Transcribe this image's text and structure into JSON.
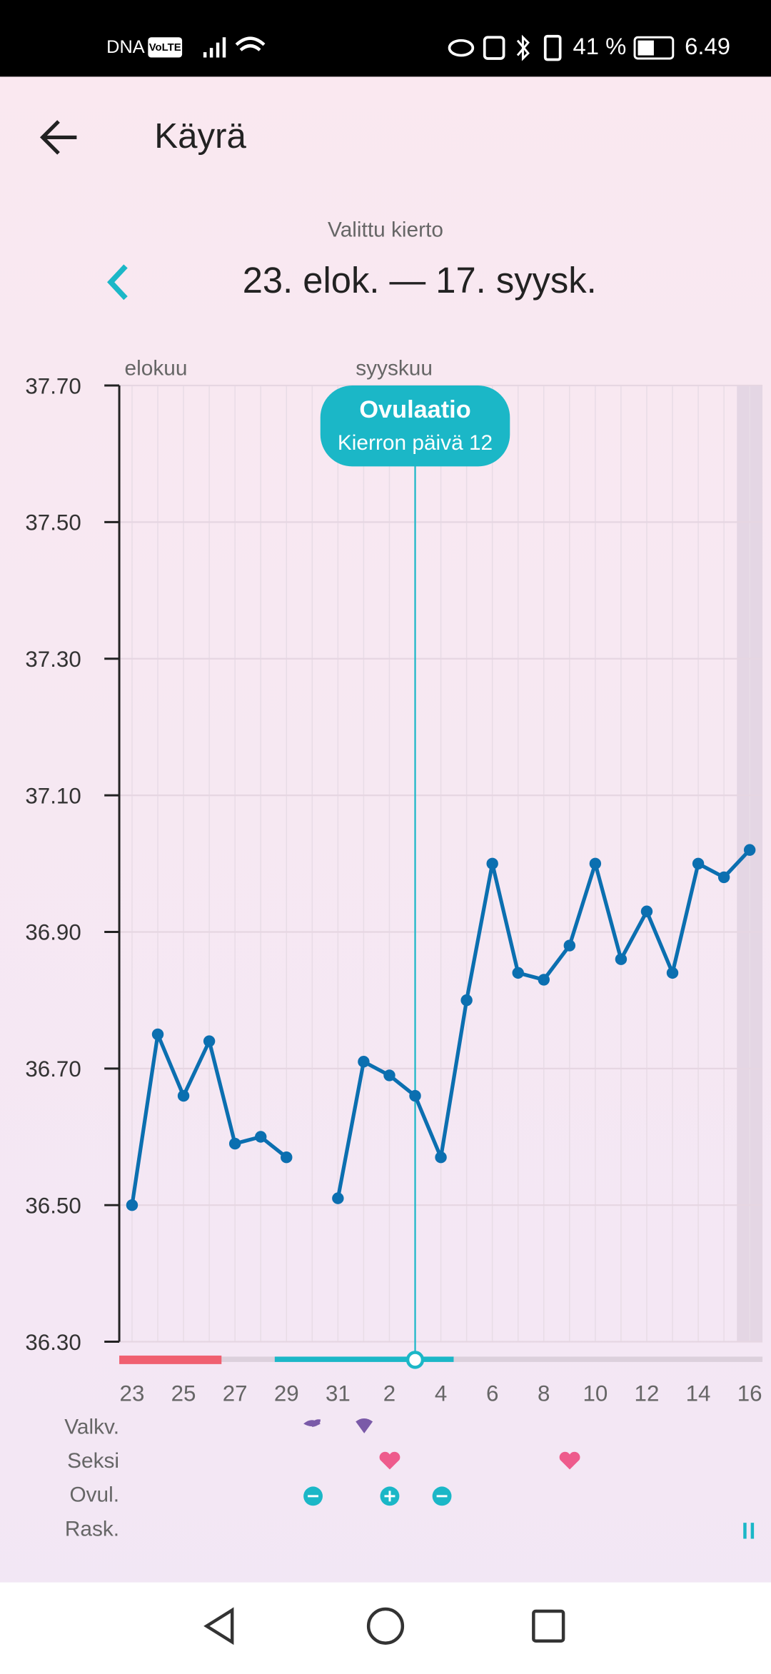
{
  "status_bar": {
    "carrier": "DNA",
    "volte": "VoLTE",
    "battery": "41 %",
    "time": "6.49"
  },
  "header": {
    "title": "Käyrä"
  },
  "cycle": {
    "label": "Valittu kierto",
    "range": "23. elok. — 17. syysk."
  },
  "chart_data": {
    "type": "line",
    "months": [
      "elokuu",
      "syyskuu"
    ],
    "categories": [
      "23",
      null,
      "25",
      null,
      "27",
      null,
      "29",
      null,
      "31",
      null,
      "2",
      null,
      "4",
      null,
      "6",
      null,
      "8",
      null,
      "10",
      null,
      "12",
      null,
      "14",
      null,
      "16"
    ],
    "series": [
      {
        "color": "#0b6fb0",
        "values": [
          36.5,
          36.75,
          36.66,
          36.74,
          36.59,
          36.6,
          36.57,
          null,
          36.51,
          36.71,
          36.69,
          36.66,
          36.57,
          36.8,
          37.0,
          36.84,
          36.83,
          36.88,
          37.0,
          36.86,
          36.93,
          36.84,
          37.0,
          36.98,
          37.02
        ]
      }
    ],
    "ylim": [
      36.3,
      37.7
    ],
    "yticks": [
      {
        "value": 36.3,
        "label": "36.30"
      },
      {
        "value": 36.5,
        "label": "36.50"
      },
      {
        "value": 36.7,
        "label": "36.70"
      },
      {
        "value": 36.9,
        "label": "36.90"
      },
      {
        "value": 37.1,
        "label": "37.10"
      },
      {
        "value": 37.3,
        "label": "37.30"
      },
      {
        "value": 37.5,
        "label": "37.50"
      },
      {
        "value": 37.7,
        "label": "37.70"
      }
    ],
    "grid": true,
    "annotation": {
      "title": "Ovulaatio",
      "subtitle": "Kierron päivä 12"
    }
  },
  "rows": [
    "Valkv.",
    "Seksi",
    "Ovul.",
    "Rask."
  ]
}
